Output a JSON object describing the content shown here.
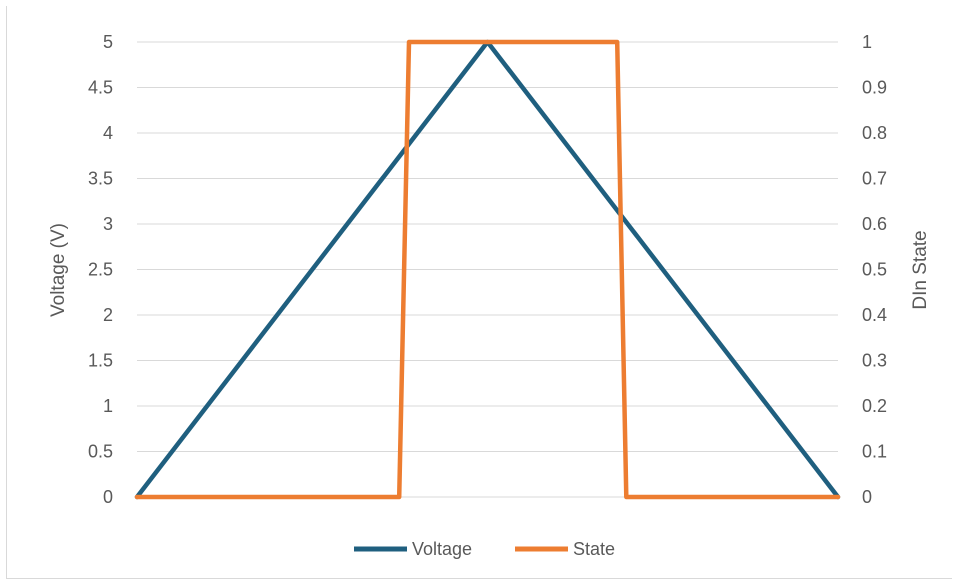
{
  "chart_data": {
    "type": "line",
    "title": "",
    "ylabel": "Voltage (V)",
    "y2label": "DIn State",
    "ylim": [
      0,
      5
    ],
    "y2lim": [
      0,
      1
    ],
    "yticks": [
      "0",
      "0.5",
      "1",
      "1.5",
      "2",
      "2.5",
      "3",
      "3.5",
      "4",
      "4.5",
      "5"
    ],
    "y2ticks": [
      "0",
      "0.1",
      "0.2",
      "0.3",
      "0.4",
      "0.5",
      "0.6",
      "0.7",
      "0.8",
      "0.9",
      "1"
    ],
    "grid": true,
    "legend_position": "bottom",
    "x": [
      0,
      0.374,
      0.388,
      0.5,
      0.685,
      0.698,
      1.0
    ],
    "series": [
      {
        "name": "Voltage",
        "axis": "left",
        "color": "#1f5f7f",
        "points": [
          [
            0,
            0
          ],
          [
            0.5,
            5
          ],
          [
            1.0,
            0
          ]
        ]
      },
      {
        "name": "State",
        "axis": "right",
        "color": "#ed7d31",
        "points": [
          [
            0,
            0
          ],
          [
            0.374,
            0
          ],
          [
            0.388,
            1
          ],
          [
            0.685,
            1
          ],
          [
            0.698,
            0
          ],
          [
            1.0,
            0
          ]
        ]
      }
    ]
  }
}
